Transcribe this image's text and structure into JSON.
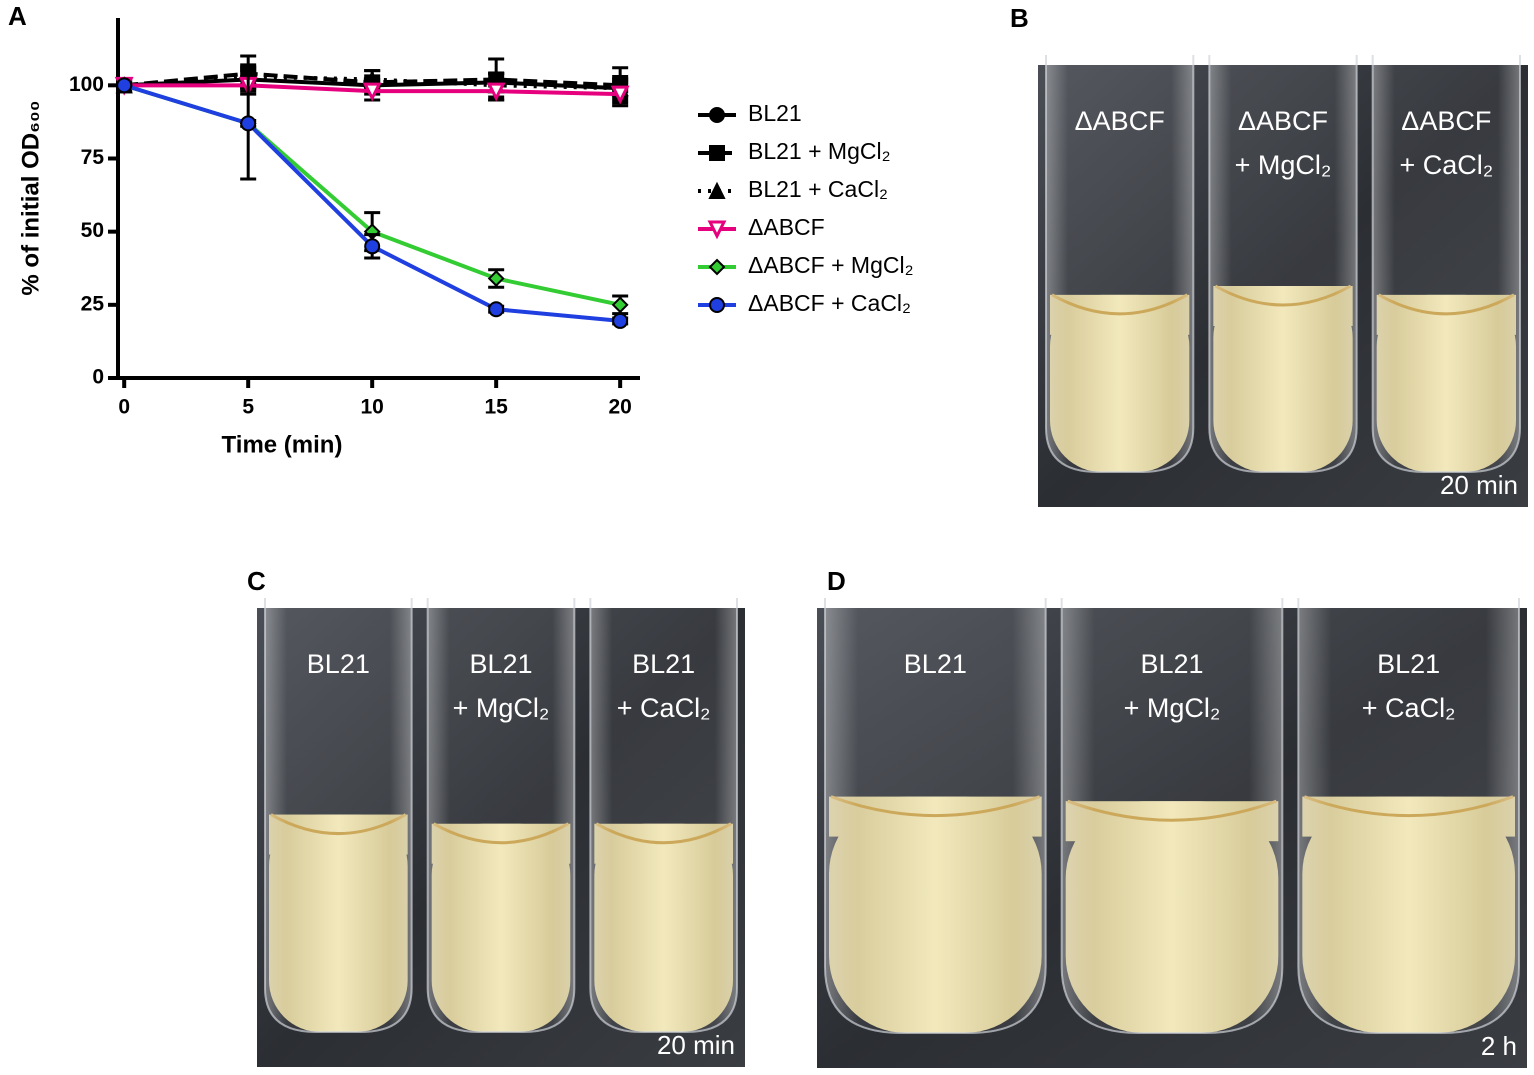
{
  "chart_data": {
    "type": "line",
    "panel_label": "A",
    "x_label": "Time (min)",
    "y_label": "% of initial OD₆₀₀",
    "x": [
      0,
      5,
      10,
      15,
      20
    ],
    "xlim": [
      -0.25,
      20.8
    ],
    "xticks": [
      0,
      5,
      10,
      15,
      20
    ],
    "ylim": [
      0,
      123
    ],
    "yticks": [
      0,
      25,
      50,
      75,
      100
    ],
    "series": [
      {
        "name": "BL21",
        "color": "#000000",
        "dash": "solid",
        "marker": "circle",
        "values": [
          100,
          102,
          100,
          101,
          99
        ],
        "errors": [
          0,
          3,
          2,
          3,
          3
        ]
      },
      {
        "name": "BL21 + MgCl₂",
        "color": "#000000",
        "dash": "dashed",
        "marker": "square",
        "values": [
          100,
          104,
          101,
          102,
          100
        ],
        "errors": [
          0,
          6,
          4,
          7,
          6
        ]
      },
      {
        "name": "BL21 + CaCl₂",
        "color": "#000000",
        "dash": "dotted",
        "marker": "triangle",
        "values": [
          100,
          103,
          102,
          100,
          99
        ],
        "errors": [
          0,
          4,
          3,
          4,
          4
        ]
      },
      {
        "name": "ΔABCF",
        "color": "#e6007e",
        "dash": "solid",
        "marker": "triangle-down",
        "values": [
          100,
          100,
          98,
          98,
          97
        ],
        "errors": [
          0,
          3,
          3,
          3,
          4
        ]
      },
      {
        "name": "ΔABCF + MgCl₂",
        "color": "#33cc33",
        "dash": "solid",
        "marker": "diamond",
        "values": [
          100,
          87,
          50,
          34,
          25
        ],
        "errors": [
          0,
          1,
          6.5,
          3,
          3
        ]
      },
      {
        "name": "ΔABCF + CaCl₂",
        "color": "#1f3fe0",
        "dash": "solid",
        "marker": "circle",
        "values": [
          100,
          87,
          45,
          23.5,
          19.5
        ],
        "errors": [
          0,
          19,
          4,
          1,
          1
        ]
      }
    ]
  },
  "photos": [
    {
      "panel_label": "B",
      "time_label": "20 min",
      "tubes": [
        [
          "ΔABCF"
        ],
        [
          "ΔABCF",
          "+ MgCl₂"
        ],
        [
          "ΔABCF",
          "+ CaCl₂"
        ]
      ]
    },
    {
      "panel_label": "C",
      "time_label": "20 min",
      "tubes": [
        [
          "BL21"
        ],
        [
          "BL21",
          "+ MgCl₂"
        ],
        [
          "BL21",
          "+ CaCl₂"
        ]
      ]
    },
    {
      "panel_label": "D",
      "time_label": "2 h",
      "tubes": [
        [
          "BL21"
        ],
        [
          "BL21",
          "+ MgCl₂"
        ],
        [
          "BL21",
          "+ CaCl₂"
        ]
      ]
    }
  ]
}
